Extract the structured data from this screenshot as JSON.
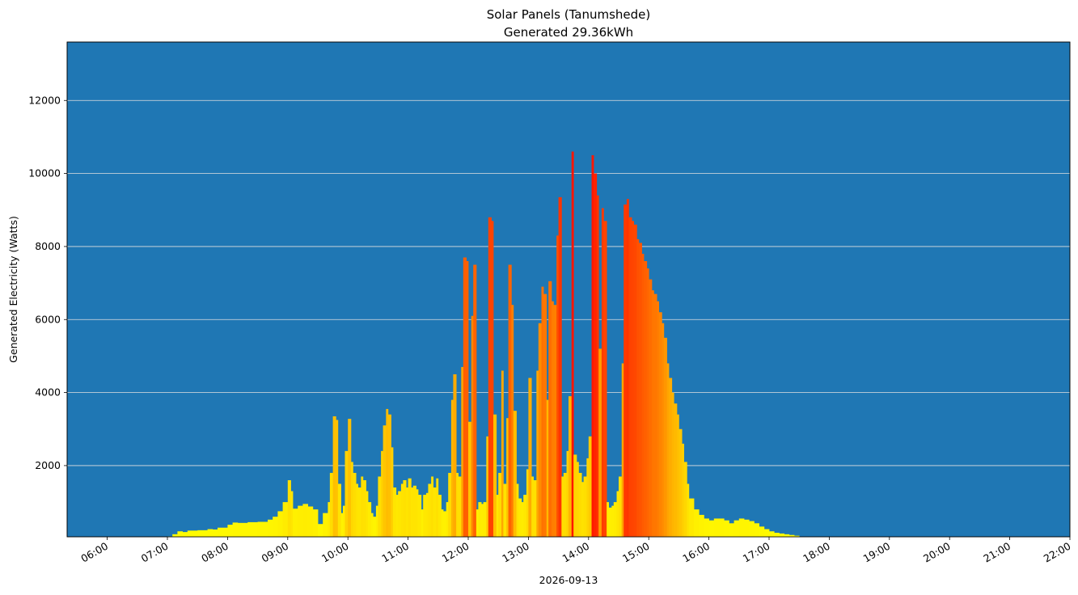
{
  "chart_data": {
    "type": "bar",
    "title": "Solar Panels (Tanumshede)",
    "subtitle": "Generated 29.36kWh",
    "xlabel": "2026-09-13",
    "ylabel": "Generated Electricity (Watts)",
    "date": "2026-09-13",
    "xlim": [
      "05:20",
      "22:00"
    ],
    "ylim": [
      50,
      13600
    ],
    "x_ticks": [
      "06:00",
      "07:00",
      "08:00",
      "09:00",
      "10:00",
      "11:00",
      "12:00",
      "13:00",
      "14:00",
      "15:00",
      "16:00",
      "17:00",
      "18:00",
      "19:00",
      "20:00",
      "21:00",
      "22:00"
    ],
    "y_ticks": [
      2000,
      4000,
      6000,
      8000,
      10000,
      12000
    ],
    "grid": "horizontal",
    "colors": {
      "plot_background": "#1f77b4",
      "gridline": "#e0e0e0",
      "low_power": "#ffff00",
      "high_power": "#ff1a00"
    },
    "color_mapping": "bar color shifts from yellow (low watts) to red (high watts)",
    "points": [
      [
        "06:50",
        30
      ],
      [
        "07:00",
        60
      ],
      [
        "07:05",
        120
      ],
      [
        "07:10",
        200
      ],
      [
        "07:15",
        180
      ],
      [
        "07:20",
        220
      ],
      [
        "07:30",
        230
      ],
      [
        "07:40",
        260
      ],
      [
        "07:45",
        250
      ],
      [
        "07:50",
        300
      ],
      [
        "08:00",
        380
      ],
      [
        "08:05",
        440
      ],
      [
        "08:10",
        430
      ],
      [
        "08:20",
        450
      ],
      [
        "08:30",
        460
      ],
      [
        "08:40",
        520
      ],
      [
        "08:45",
        600
      ],
      [
        "08:50",
        750
      ],
      [
        "08:55",
        1000
      ],
      [
        "09:00",
        1600
      ],
      [
        "09:03",
        1300
      ],
      [
        "09:05",
        820
      ],
      [
        "09:10",
        900
      ],
      [
        "09:15",
        950
      ],
      [
        "09:20",
        880
      ],
      [
        "09:25",
        800
      ],
      [
        "09:30",
        400
      ],
      [
        "09:35",
        700
      ],
      [
        "09:40",
        1000
      ],
      [
        "09:42",
        1800
      ],
      [
        "09:45",
        3350
      ],
      [
        "09:48",
        3250
      ],
      [
        "09:50",
        1500
      ],
      [
        "09:53",
        700
      ],
      [
        "09:55",
        900
      ],
      [
        "09:57",
        2400
      ],
      [
        "10:00",
        3280
      ],
      [
        "10:03",
        2100
      ],
      [
        "10:05",
        1800
      ],
      [
        "10:08",
        1500
      ],
      [
        "10:10",
        1400
      ],
      [
        "10:13",
        1700
      ],
      [
        "10:15",
        1600
      ],
      [
        "10:18",
        1300
      ],
      [
        "10:20",
        1000
      ],
      [
        "10:23",
        700
      ],
      [
        "10:25",
        600
      ],
      [
        "10:28",
        900
      ],
      [
        "10:30",
        1700
      ],
      [
        "10:33",
        2400
      ],
      [
        "10:35",
        3100
      ],
      [
        "10:38",
        3550
      ],
      [
        "10:40",
        3400
      ],
      [
        "10:43",
        2500
      ],
      [
        "10:45",
        1400
      ],
      [
        "10:48",
        1200
      ],
      [
        "10:50",
        1300
      ],
      [
        "10:53",
        1500
      ],
      [
        "10:55",
        1600
      ],
      [
        "10:58",
        1400
      ],
      [
        "11:00",
        1650
      ],
      [
        "11:03",
        1400
      ],
      [
        "11:05",
        1450
      ],
      [
        "11:08",
        1350
      ],
      [
        "11:10",
        1200
      ],
      [
        "11:13",
        800
      ],
      [
        "11:15",
        1200
      ],
      [
        "11:18",
        1250
      ],
      [
        "11:20",
        1500
      ],
      [
        "11:23",
        1700
      ],
      [
        "11:25",
        1400
      ],
      [
        "11:28",
        1650
      ],
      [
        "11:30",
        1200
      ],
      [
        "11:33",
        800
      ],
      [
        "11:35",
        750
      ],
      [
        "11:38",
        1000
      ],
      [
        "11:40",
        1800
      ],
      [
        "11:43",
        3800
      ],
      [
        "11:45",
        4500
      ],
      [
        "11:48",
        1800
      ],
      [
        "11:50",
        1700
      ],
      [
        "11:53",
        4700
      ],
      [
        "11:55",
        7700
      ],
      [
        "11:58",
        7600
      ],
      [
        "12:00",
        3200
      ],
      [
        "12:03",
        6100
      ],
      [
        "12:05",
        7500
      ],
      [
        "12:08",
        800
      ],
      [
        "12:10",
        1000
      ],
      [
        "12:13",
        950
      ],
      [
        "12:15",
        1000
      ],
      [
        "12:18",
        2800
      ],
      [
        "12:20",
        8800
      ],
      [
        "12:23",
        8700
      ],
      [
        "12:25",
        3400
      ],
      [
        "12:28",
        1200
      ],
      [
        "12:30",
        1800
      ],
      [
        "12:33",
        4600
      ],
      [
        "12:35",
        1500
      ],
      [
        "12:38",
        3300
      ],
      [
        "12:40",
        7500
      ],
      [
        "12:43",
        6400
      ],
      [
        "12:45",
        3500
      ],
      [
        "12:48",
        1500
      ],
      [
        "12:50",
        1100
      ],
      [
        "12:53",
        1000
      ],
      [
        "12:55",
        1200
      ],
      [
        "12:58",
        1900
      ],
      [
        "13:00",
        4400
      ],
      [
        "13:03",
        1700
      ],
      [
        "13:05",
        1600
      ],
      [
        "13:08",
        4600
      ],
      [
        "13:10",
        5900
      ],
      [
        "13:13",
        6900
      ],
      [
        "13:15",
        6700
      ],
      [
        "13:18",
        3800
      ],
      [
        "13:20",
        7050
      ],
      [
        "13:23",
        6500
      ],
      [
        "13:25",
        6400
      ],
      [
        "13:28",
        8300
      ],
      [
        "13:30",
        9350
      ],
      [
        "13:33",
        1700
      ],
      [
        "13:35",
        1800
      ],
      [
        "13:38",
        2400
      ],
      [
        "13:40",
        3900
      ],
      [
        "13:43",
        10600
      ],
      [
        "13:45",
        2300
      ],
      [
        "13:48",
        2100
      ],
      [
        "13:50",
        1800
      ],
      [
        "13:53",
        1550
      ],
      [
        "13:55",
        1700
      ],
      [
        "13:58",
        2200
      ],
      [
        "14:00",
        2800
      ],
      [
        "14:03",
        10500
      ],
      [
        "14:05",
        10000
      ],
      [
        "14:08",
        9400
      ],
      [
        "14:10",
        5200
      ],
      [
        "14:13",
        9050
      ],
      [
        "14:15",
        8700
      ],
      [
        "14:18",
        1000
      ],
      [
        "14:20",
        850
      ],
      [
        "14:23",
        900
      ],
      [
        "14:25",
        1000
      ],
      [
        "14:28",
        1300
      ],
      [
        "14:30",
        1700
      ],
      [
        "14:33",
        4800
      ],
      [
        "14:35",
        9150
      ],
      [
        "14:38",
        9300
      ],
      [
        "14:40",
        8800
      ],
      [
        "14:43",
        8700
      ],
      [
        "14:45",
        8600
      ],
      [
        "14:48",
        8200
      ],
      [
        "14:50",
        8100
      ],
      [
        "14:53",
        7800
      ],
      [
        "14:55",
        7600
      ],
      [
        "14:58",
        7400
      ],
      [
        "15:00",
        7100
      ],
      [
        "15:03",
        6800
      ],
      [
        "15:05",
        6700
      ],
      [
        "15:08",
        6500
      ],
      [
        "15:10",
        6200
      ],
      [
        "15:13",
        5900
      ],
      [
        "15:15",
        5500
      ],
      [
        "15:18",
        4800
      ],
      [
        "15:20",
        4400
      ],
      [
        "15:23",
        4000
      ],
      [
        "15:25",
        3700
      ],
      [
        "15:28",
        3400
      ],
      [
        "15:30",
        3000
      ],
      [
        "15:33",
        2600
      ],
      [
        "15:35",
        2100
      ],
      [
        "15:38",
        1500
      ],
      [
        "15:40",
        1100
      ],
      [
        "15:45",
        800
      ],
      [
        "15:50",
        650
      ],
      [
        "15:55",
        550
      ],
      [
        "16:00",
        500
      ],
      [
        "16:05",
        550
      ],
      [
        "16:10",
        550
      ],
      [
        "16:15",
        500
      ],
      [
        "16:20",
        420
      ],
      [
        "16:25",
        500
      ],
      [
        "16:30",
        550
      ],
      [
        "16:35",
        520
      ],
      [
        "16:40",
        480
      ],
      [
        "16:45",
        420
      ],
      [
        "16:50",
        330
      ],
      [
        "16:55",
        260
      ],
      [
        "17:00",
        200
      ],
      [
        "17:05",
        160
      ],
      [
        "17:10",
        140
      ],
      [
        "17:15",
        120
      ],
      [
        "17:20",
        100
      ],
      [
        "17:25",
        80
      ]
    ]
  }
}
